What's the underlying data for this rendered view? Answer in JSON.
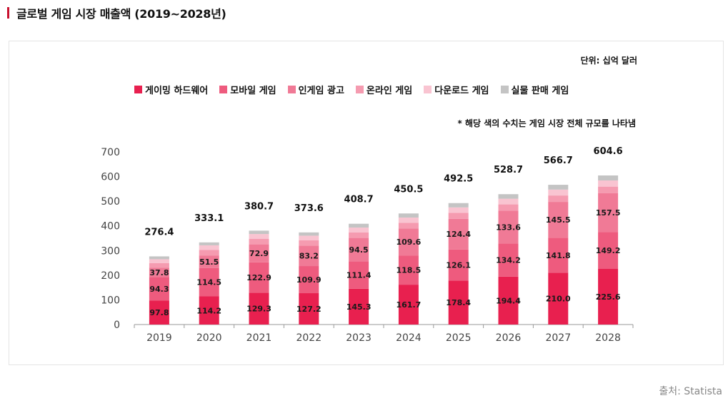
{
  "page": {
    "title": "글로벌 게임 시장 매출액 (2019~2028년)",
    "unit": "단위: 십억 달러",
    "note": "* 해당 색의 수치는 게임 시장 전체 규모를 나타냄",
    "source": "출처: Statista",
    "accent_color": "#c8102e"
  },
  "chart_data": {
    "type": "bar",
    "stacked": true,
    "categories": [
      "2019",
      "2020",
      "2021",
      "2022",
      "2023",
      "2024",
      "2025",
      "2026",
      "2027",
      "2028"
    ],
    "ylim": [
      0,
      700
    ],
    "yticks": [
      0,
      100,
      200,
      300,
      400,
      500,
      600,
      700
    ],
    "series": [
      {
        "name": "게이밍 하드웨어",
        "color": "#e8204f",
        "values": [
          97.8,
          114.2,
          129.3,
          127.2,
          145.3,
          161.7,
          178.4,
          194.4,
          210.0,
          225.6
        ],
        "labels": [
          "97.8",
          "114.2",
          "129.3",
          "127.2",
          "145.3",
          "161.7",
          "178.4",
          "194.4",
          "210.0",
          "225.6"
        ]
      },
      {
        "name": "모바일 게임",
        "color": "#ee5b7e",
        "values": [
          94.3,
          114.5,
          122.9,
          109.9,
          111.4,
          118.5,
          126.1,
          134.2,
          141.8,
          149.2
        ],
        "labels": [
          "94.3",
          "114.5",
          "122.9",
          "109.9",
          "111.4",
          "118.5",
          "126.1",
          "134.2",
          "141.8",
          "149.2"
        ]
      },
      {
        "name": "인게임 광고",
        "color": "#f07a96",
        "values": [
          37.8,
          51.5,
          72.9,
          83.2,
          94.5,
          109.6,
          124.4,
          133.6,
          145.5,
          157.5
        ],
        "labels": [
          "37.8",
          "51.5",
          "72.9",
          "83.2",
          "94.5",
          "109.6",
          "124.4",
          "133.6",
          "145.5",
          "157.5"
        ]
      },
      {
        "name": "온라인 게임",
        "color": "#f59bb0",
        "values": [
          19,
          22,
          22,
          21,
          22,
          23,
          24,
          25,
          26,
          27
        ]
      },
      {
        "name": "다운로드 게임",
        "color": "#f9c4d1",
        "values": [
          16,
          19,
          20,
          19,
          20,
          21,
          22,
          23,
          24,
          25
        ]
      },
      {
        "name": "실물 판매 게임",
        "color": "#c4c4c4",
        "values": [
          11.5,
          11.9,
          13.6,
          13.3,
          15.5,
          16.7,
          17.6,
          18.5,
          19.4,
          20.3
        ]
      }
    ],
    "totals": [
      "276.4",
      "333.1",
      "380.7",
      "373.6",
      "408.7",
      "450.5",
      "492.5",
      "528.7",
      "566.7",
      "604.6"
    ],
    "total_values": [
      276.4,
      333.1,
      380.7,
      373.6,
      408.7,
      450.5,
      492.5,
      528.7,
      566.7,
      604.6
    ],
    "grid": false,
    "legend_position": "top"
  }
}
